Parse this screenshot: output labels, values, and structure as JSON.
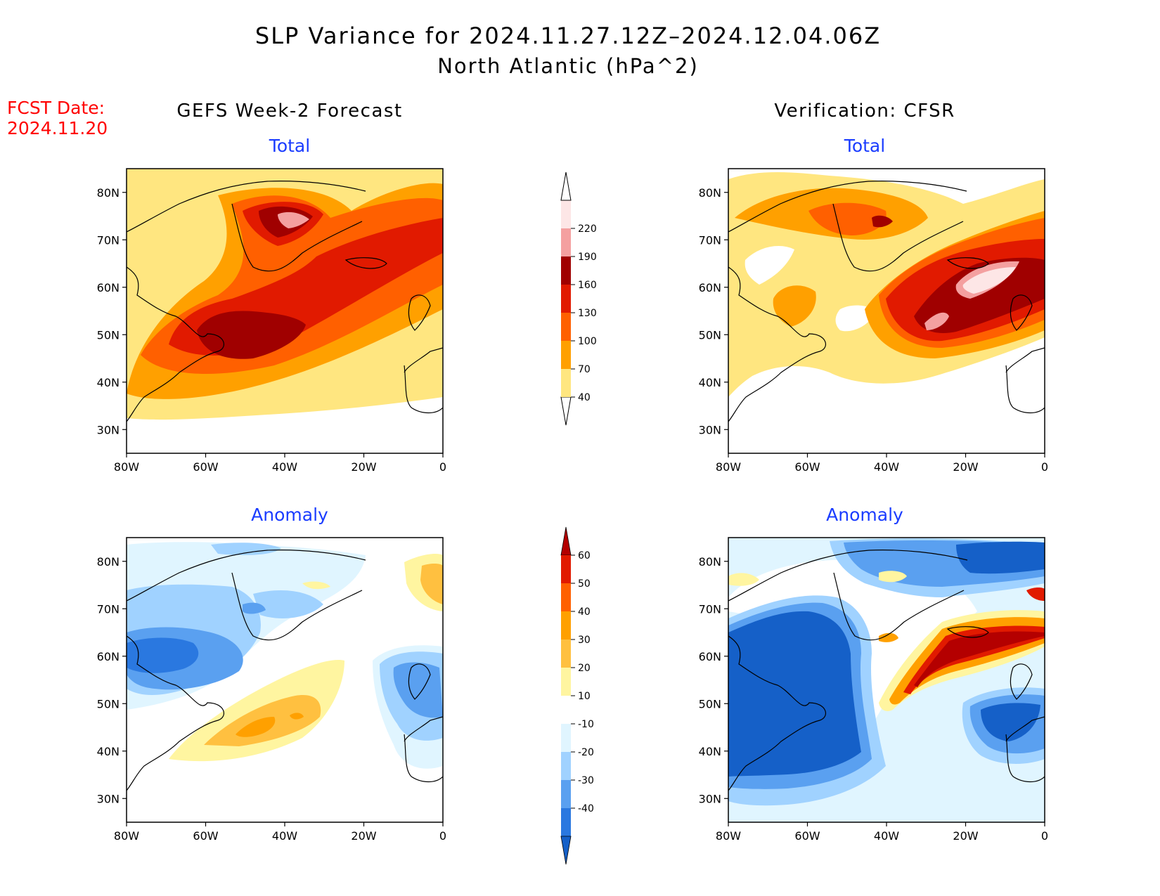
{
  "title": {
    "line1": "SLP Variance for 2024.11.27.12Z–2024.12.04.06Z",
    "line2": "North Atlantic (hPa^2)"
  },
  "forecast_date": {
    "label": "FCST Date:",
    "value": "2024.11.20"
  },
  "columns": {
    "left": "GEFS Week-2 Forecast",
    "right": "Verification: CFSR"
  },
  "panel_titles": {
    "total": "Total",
    "anomaly": "Anomaly"
  },
  "axes": {
    "lon_ticks": [
      "80W",
      "60W",
      "40W",
      "20W",
      "0"
    ],
    "lat_ticks": [
      "80N",
      "70N",
      "60N",
      "50N",
      "40N",
      "30N"
    ],
    "lon_range": [
      -80,
      0
    ],
    "lat_range": [
      25,
      85
    ]
  },
  "colorbars": {
    "total": {
      "labels": [
        "40",
        "70",
        "100",
        "130",
        "160",
        "190",
        "220"
      ],
      "colors": [
        "#ffe680",
        "#ffa000",
        "#ff6000",
        "#e11a00",
        "#a00000",
        "#f4a0a0",
        "#fde6e6"
      ]
    },
    "anomaly": {
      "labels": [
        "60",
        "50",
        "40",
        "30",
        "20",
        "10",
        "-10",
        "-20",
        "-30",
        "-40"
      ],
      "colors": [
        "#b40000",
        "#e11a00",
        "#ff6000",
        "#ffa000",
        "#ffc040",
        "#fff5a0",
        "#ffffff",
        "#e0f5ff",
        "#a0d2ff",
        "#5aa0f0",
        "#2a78e0",
        "#1560c8"
      ]
    }
  },
  "colors": {
    "title_blue": "#1a3cff",
    "fcst_red": "#ff0000",
    "text": "#000000"
  }
}
